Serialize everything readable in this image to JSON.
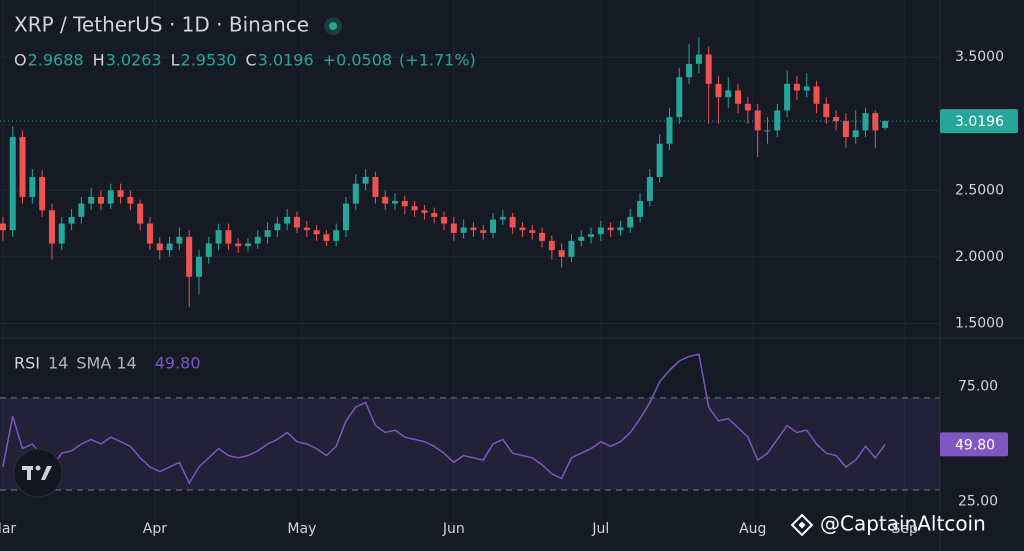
{
  "chart_data": {
    "type": "candlestick",
    "title": "XRP / TetherUS · 1D · Binance",
    "ohlc": {
      "keys": [
        "O",
        "H",
        "L",
        "C"
      ],
      "labels": [
        "2.9688",
        "3.0263",
        "2.9530",
        "3.0196"
      ],
      "change": "+0.0508",
      "change_pct": "(+1.71%)"
    },
    "x": [
      0,
      2,
      4,
      6,
      8,
      10,
      12,
      14,
      16,
      18,
      20,
      22,
      24,
      26,
      28,
      30,
      32,
      34,
      36,
      38,
      40,
      42,
      44,
      46,
      48,
      50,
      52,
      54,
      56,
      58,
      60,
      62,
      64,
      66,
      68,
      70,
      72,
      74,
      76,
      78,
      80,
      82,
      84,
      86,
      88,
      90,
      92,
      94,
      96,
      98,
      100,
      102,
      104,
      106,
      108,
      110,
      112,
      114,
      116,
      118,
      120,
      122,
      124,
      126,
      128,
      130,
      132,
      134,
      136,
      138,
      140,
      142,
      144,
      146,
      148,
      150,
      152,
      154,
      156,
      158,
      160,
      162,
      164,
      166,
      168,
      170,
      172,
      174,
      176,
      178,
      180
    ],
    "open": [
      2.25,
      2.2,
      2.9,
      2.45,
      2.6,
      2.35,
      2.1,
      2.25,
      2.3,
      2.4,
      2.45,
      2.4,
      2.5,
      2.45,
      2.4,
      2.25,
      2.1,
      2.05,
      2.1,
      2.15,
      1.85,
      2.0,
      2.1,
      2.2,
      2.1,
      2.08,
      2.1,
      2.15,
      2.2,
      2.25,
      2.3,
      2.22,
      2.2,
      2.17,
      2.12,
      2.2,
      2.4,
      2.55,
      2.6,
      2.45,
      2.4,
      2.42,
      2.38,
      2.35,
      2.33,
      2.3,
      2.25,
      2.18,
      2.22,
      2.2,
      2.18,
      2.28,
      2.3,
      2.22,
      2.2,
      2.18,
      2.12,
      2.05,
      2.0,
      2.12,
      2.15,
      2.17,
      2.22,
      2.2,
      2.22,
      2.3,
      2.42,
      2.6,
      2.85,
      3.05,
      3.35,
      3.45,
      3.52,
      3.3,
      3.2,
      3.25,
      3.15,
      3.1,
      2.95,
      2.95,
      3.1,
      3.3,
      3.25,
      3.28,
      3.15,
      3.05,
      3.02,
      2.9,
      2.95,
      3.08,
      2.9688
    ],
    "high": [
      2.3,
      2.98,
      2.95,
      2.66,
      2.65,
      2.4,
      2.3,
      2.36,
      2.45,
      2.52,
      2.5,
      2.55,
      2.55,
      2.5,
      2.43,
      2.3,
      2.15,
      2.15,
      2.22,
      2.2,
      2.05,
      2.15,
      2.25,
      2.25,
      2.14,
      2.14,
      2.2,
      2.26,
      2.3,
      2.36,
      2.34,
      2.27,
      2.24,
      2.2,
      2.25,
      2.45,
      2.62,
      2.66,
      2.64,
      2.5,
      2.48,
      2.46,
      2.42,
      2.39,
      2.37,
      2.34,
      2.3,
      2.28,
      2.26,
      2.24,
      2.33,
      2.35,
      2.33,
      2.26,
      2.24,
      2.22,
      2.16,
      2.1,
      2.17,
      2.2,
      2.22,
      2.27,
      2.26,
      2.27,
      2.36,
      2.48,
      2.66,
      2.92,
      3.12,
      3.42,
      3.6,
      3.65,
      3.58,
      3.36,
      3.35,
      3.3,
      3.2,
      3.15,
      3.05,
      3.15,
      3.4,
      3.36,
      3.38,
      3.32,
      3.2,
      3.1,
      3.08,
      3.1,
      3.12,
      3.1,
      3.0263
    ],
    "low": [
      2.12,
      2.15,
      2.4,
      2.4,
      2.3,
      1.98,
      2.05,
      2.2,
      2.25,
      2.35,
      2.35,
      2.36,
      2.4,
      2.35,
      2.2,
      2.05,
      1.98,
      2.0,
      2.05,
      1.62,
      1.72,
      1.95,
      2.05,
      2.05,
      2.03,
      2.04,
      2.06,
      2.1,
      2.15,
      2.2,
      2.18,
      2.15,
      2.12,
      2.08,
      2.08,
      2.15,
      2.35,
      2.5,
      2.4,
      2.35,
      2.35,
      2.32,
      2.3,
      2.28,
      2.25,
      2.2,
      2.12,
      2.14,
      2.15,
      2.13,
      2.14,
      2.24,
      2.17,
      2.15,
      2.13,
      2.07,
      1.98,
      1.92,
      1.96,
      2.08,
      2.1,
      2.12,
      2.15,
      2.16,
      2.18,
      2.26,
      2.38,
      2.56,
      2.8,
      3.0,
      3.3,
      3.38,
      3.0,
      3.0,
      3.12,
      3.08,
      3.0,
      2.75,
      2.85,
      2.9,
      3.05,
      3.18,
      3.2,
      3.08,
      3.0,
      2.95,
      2.82,
      2.85,
      2.9,
      2.82,
      2.953
    ],
    "close": [
      2.2,
      2.9,
      2.45,
      2.6,
      2.35,
      2.1,
      2.25,
      2.3,
      2.4,
      2.45,
      2.4,
      2.5,
      2.45,
      2.4,
      2.25,
      2.1,
      2.05,
      2.1,
      2.15,
      1.85,
      2.0,
      2.1,
      2.2,
      2.1,
      2.08,
      2.1,
      2.15,
      2.2,
      2.25,
      2.3,
      2.22,
      2.2,
      2.17,
      2.12,
      2.2,
      2.4,
      2.55,
      2.6,
      2.45,
      2.4,
      2.42,
      2.38,
      2.35,
      2.33,
      2.3,
      2.25,
      2.18,
      2.22,
      2.2,
      2.18,
      2.28,
      2.3,
      2.22,
      2.2,
      2.18,
      2.12,
      2.05,
      2.0,
      2.12,
      2.15,
      2.17,
      2.22,
      2.2,
      2.22,
      2.3,
      2.42,
      2.6,
      2.85,
      3.05,
      3.35,
      3.45,
      3.52,
      3.3,
      3.2,
      3.25,
      3.15,
      3.1,
      2.95,
      2.95,
      3.1,
      3.3,
      3.25,
      3.28,
      3.15,
      3.05,
      3.02,
      2.9,
      2.95,
      3.08,
      2.95,
      3.0196
    ],
    "up_color": "#26a69a",
    "down_color": "#ef5350",
    "xlim": [
      -0.6,
      191.2
    ],
    "xticks": [
      {
        "value": 0,
        "label": "Mar"
      },
      {
        "value": 31,
        "label": "Apr"
      },
      {
        "value": 61,
        "label": "May"
      },
      {
        "value": 92,
        "label": "Jun"
      },
      {
        "value": 122,
        "label": "Jul"
      },
      {
        "value": 153,
        "label": "Aug"
      },
      {
        "value": 184,
        "label": "Sep"
      }
    ],
    "ylim": [
      1.39,
      3.93
    ],
    "yticks": [
      {
        "value": 1.5,
        "label": "1.5000"
      },
      {
        "value": 2,
        "label": "2.0000"
      },
      {
        "value": 2.5,
        "label": "2.5000"
      },
      {
        "value": 3.5,
        "label": "3.5000"
      }
    ],
    "grid": true,
    "indicator": {
      "name": "RSI",
      "params": "14",
      "sma": "SMA 14",
      "value_label": "49.80",
      "color": "#7e57c2",
      "values": [
        40,
        62,
        48,
        50,
        45,
        40,
        46,
        47,
        50,
        52,
        50,
        53,
        51,
        49,
        44,
        40,
        38,
        40,
        42,
        33,
        40,
        44,
        48,
        45,
        44,
        45,
        47,
        50,
        52,
        55,
        51,
        50,
        48,
        45,
        49,
        60,
        66,
        68,
        58,
        55,
        56,
        53,
        52,
        51,
        49,
        46,
        42,
        45,
        44,
        43,
        50,
        52,
        46,
        45,
        44,
        41,
        37,
        35,
        44,
        46,
        48,
        51,
        49,
        51,
        55,
        61,
        68,
        77,
        82,
        86,
        88,
        89,
        66,
        60,
        61,
        57,
        53,
        43,
        46,
        52,
        58,
        55,
        56,
        50,
        46,
        45,
        40,
        43,
        49,
        44,
        49.8
      ],
      "ylim": [
        17,
        96
      ],
      "yticks": [
        {
          "value": 75,
          "label": "75.00"
        },
        {
          "value": 25,
          "label": "25.00"
        }
      ],
      "band": [
        30,
        70
      ]
    },
    "watermark": "@CaptainAltcoin"
  }
}
